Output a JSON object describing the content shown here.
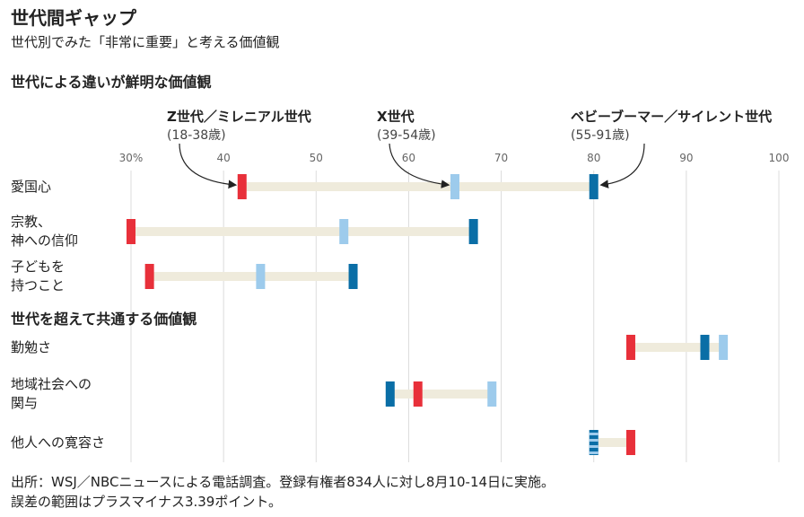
{
  "header": {
    "title": "世代間ギャップ",
    "subtitle": "世代別でみた「非常に重要」と考える価値観"
  },
  "footer": {
    "line1": "出所：WSJ／NBCニュースによる電話調査。登録有権者834人に対し8月10-14日に実施。",
    "line2": "誤差の範囲はプラスマイナス3.39ポイント。"
  },
  "chart_data": {
    "type": "dot-range",
    "xlim": [
      30,
      100
    ],
    "x_ticks": [
      "30%",
      "40",
      "50",
      "60",
      "70",
      "80",
      "90",
      "100"
    ],
    "grid": "vertical",
    "legend_placement": "top",
    "series": [
      {
        "name": "Z世代／ミレニアル世代",
        "range": "(18-38歳)",
        "color": "#e8303a"
      },
      {
        "name": "X世代",
        "range": "(39-54歳)",
        "color": "#9dcbec"
      },
      {
        "name": "ベビーブーマー／サイレント世代",
        "range": "(55-91歳)",
        "color": "#0a6ea6"
      }
    ],
    "groups": [
      {
        "title": "世代による違いが鮮明な価値観",
        "rows": [
          {
            "label": [
              "愛国心"
            ],
            "values": [
              42,
              65,
              80
            ]
          },
          {
            "label": [
              "宗教、",
              "神への信仰"
            ],
            "values": [
              30,
              53,
              67
            ]
          },
          {
            "label": [
              "子どもを",
              "持つこと"
            ],
            "values": [
              32,
              44,
              54
            ]
          }
        ]
      },
      {
        "title": "世代を超えて共通する価値観",
        "rows": [
          {
            "label": [
              "勤勉さ"
            ],
            "values": [
              84,
              94,
              92
            ]
          },
          {
            "label": [
              "地域社会への",
              "関与"
            ],
            "values": [
              61,
              69,
              58
            ]
          },
          {
            "label": [
              "他人への寛容さ"
            ],
            "values": [
              84,
              80,
              80
            ]
          }
        ]
      }
    ]
  }
}
